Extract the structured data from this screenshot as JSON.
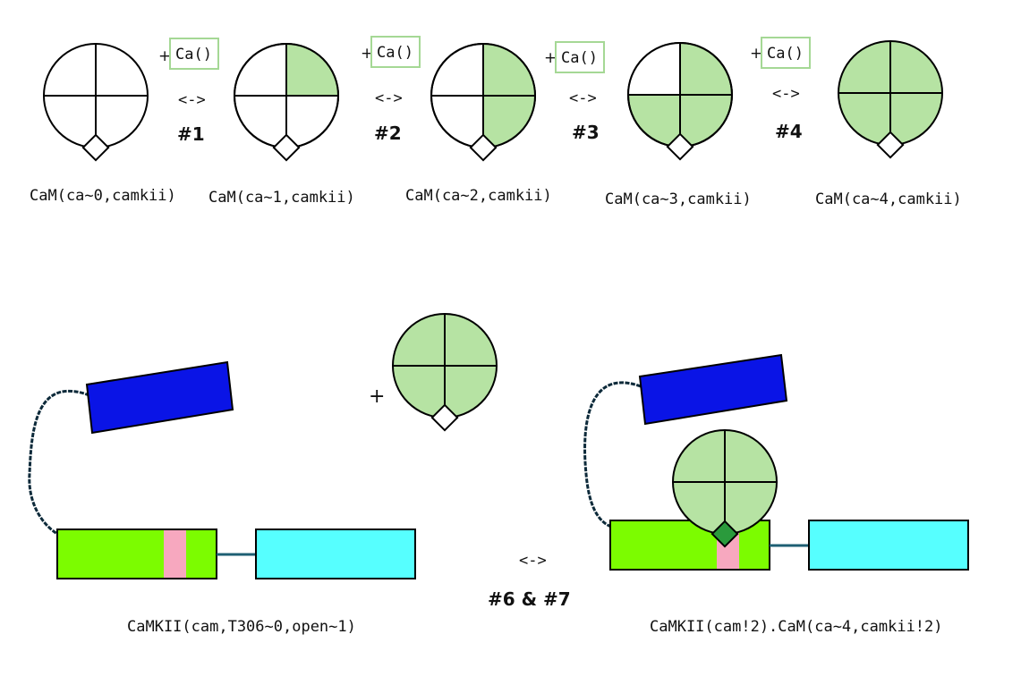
{
  "colors": {
    "ca_fill": "#b6e3a3",
    "ca_box_border": "#a5d895",
    "kinase_blue": "#0a14e6",
    "kinase_green": "#7cfc00",
    "hub_cyan": "#56ffff",
    "pink_site": "#f7a8bf",
    "bound_diamond": "#2a9a3c",
    "linker": "#1e5f73"
  },
  "calmodulin_states": [
    {
      "label": "CaM(ca~0,camkii)",
      "filled_quadrants": []
    },
    {
      "label": "CaM(ca~1,camkii)",
      "filled_quadrants": [
        "top-right"
      ]
    },
    {
      "label": "CaM(ca~2,camkii)",
      "filled_quadrants": [
        "top-right",
        "bottom-right"
      ]
    },
    {
      "label": "CaM(ca~3,camkii)",
      "filled_quadrants": [
        "top-right",
        "bottom-right",
        "bottom-left"
      ]
    },
    {
      "label": "CaM(ca~4,camkii)",
      "filled_quadrants": [
        "top-right",
        "bottom-right",
        "bottom-left",
        "top-left"
      ]
    }
  ],
  "steps": [
    {
      "plus": "+",
      "ca": "Ca()",
      "arrow": "<->",
      "number": "#1"
    },
    {
      "plus": "+",
      "ca": "Ca()",
      "arrow": "<->",
      "number": "#2"
    },
    {
      "plus": "+",
      "ca": "Ca()",
      "arrow": "<->",
      "number": "#3"
    },
    {
      "plus": "+",
      "ca": "Ca()",
      "arrow": "<->",
      "number": "#4"
    }
  ],
  "binding": {
    "plus": "+",
    "arrow": "<->",
    "number": "#6 & #7",
    "left_label": "CaMKII(cam,T306~0,open~1)",
    "right_label": "CaMKII(cam!2).CaM(ca~4,camkii!2)"
  }
}
